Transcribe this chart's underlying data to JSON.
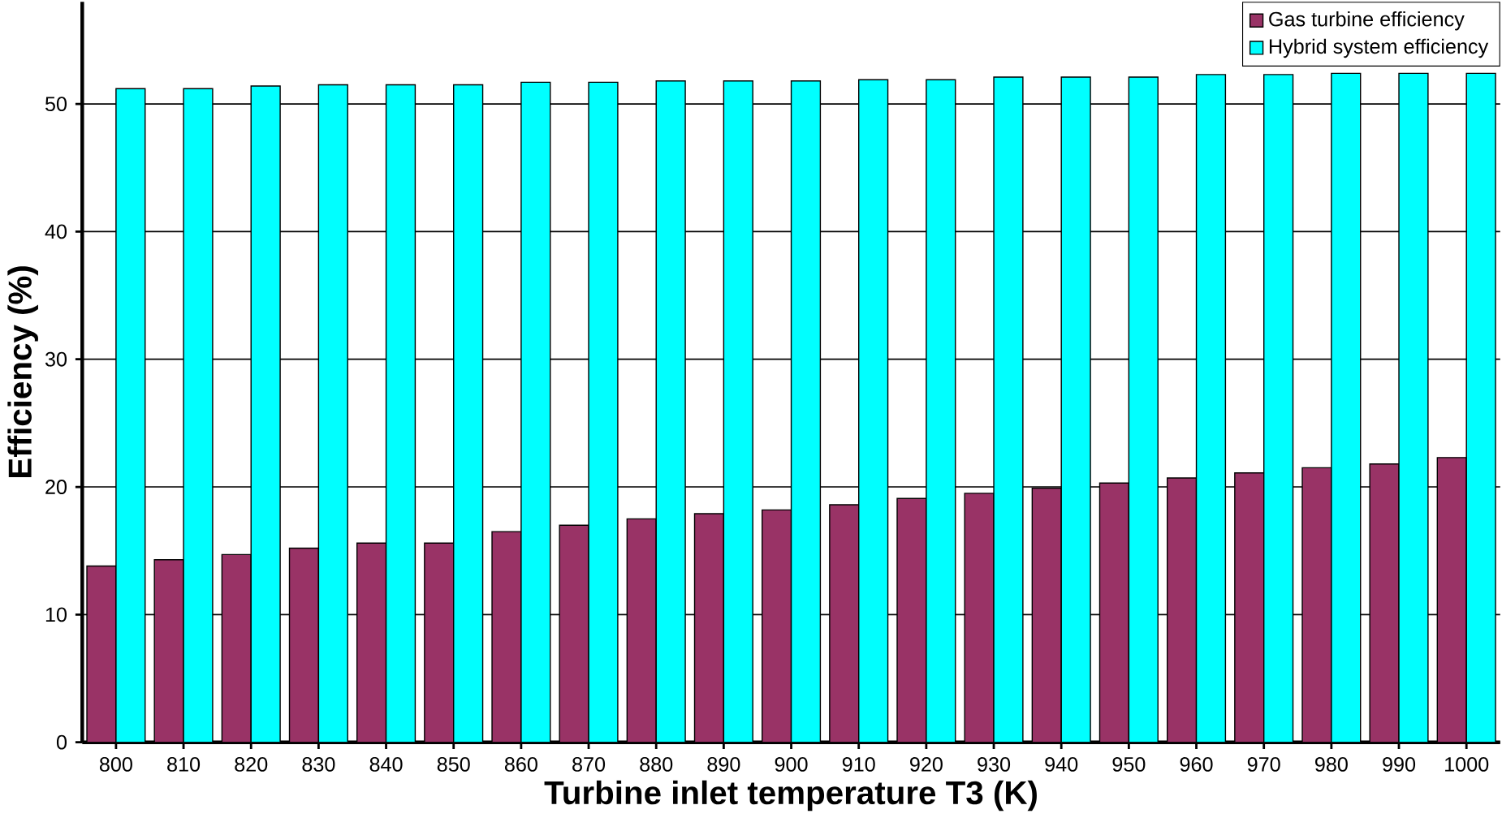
{
  "chart_data": {
    "type": "bar",
    "xlabel": "Turbine inlet temperature T3 (K)",
    "ylabel": "Efficiency (%)",
    "categories": [
      "800",
      "810",
      "820",
      "830",
      "840",
      "850",
      "860",
      "870",
      "880",
      "890",
      "900",
      "910",
      "920",
      "930",
      "940",
      "950",
      "960",
      "970",
      "980",
      "990",
      "1000"
    ],
    "series": [
      {
        "name": "Gas turbine efficiency",
        "color": "#993366",
        "values": [
          13.8,
          14.3,
          14.7,
          15.2,
          15.6,
          15.6,
          16.5,
          17.0,
          17.5,
          17.9,
          18.2,
          18.6,
          19.1,
          19.5,
          19.9,
          20.3,
          20.7,
          21.1,
          21.5,
          21.8,
          22.3
        ]
      },
      {
        "name": "Hybrid system efficiency",
        "color": "#00ffff",
        "values": [
          51.2,
          51.2,
          51.4,
          51.5,
          51.5,
          51.5,
          51.7,
          51.7,
          51.8,
          51.8,
          51.8,
          51.9,
          51.9,
          52.1,
          52.1,
          52.1,
          52.3,
          52.3,
          52.4,
          52.4,
          52.4
        ]
      }
    ],
    "ylim": [
      0,
      58
    ],
    "yticks": [
      0,
      10,
      20,
      30,
      40,
      50
    ],
    "grid": "y",
    "legend": "top right"
  }
}
